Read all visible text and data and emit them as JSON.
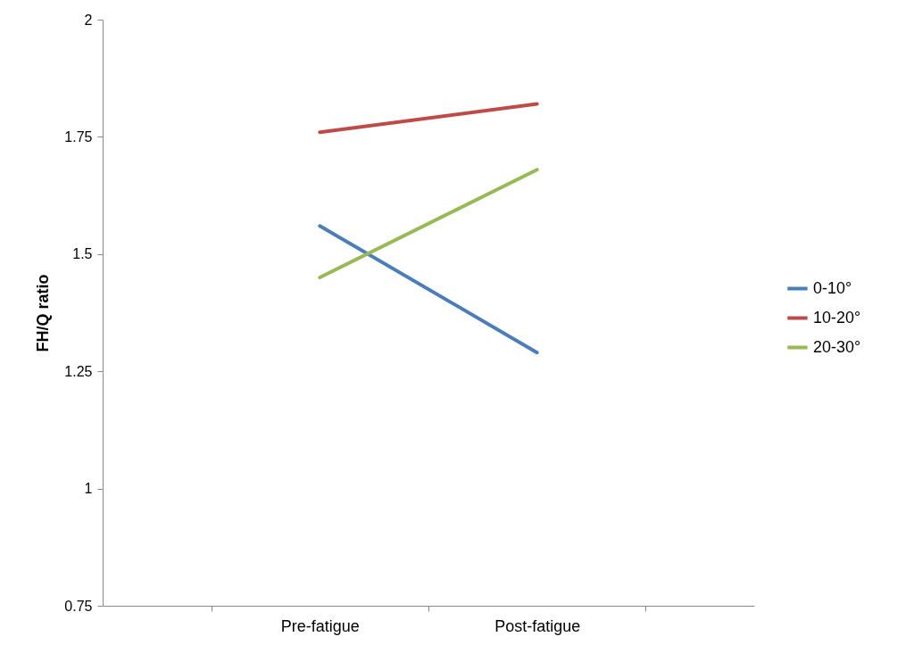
{
  "chart_data": {
    "type": "line",
    "ylabel": "FH/Q ratio",
    "categories": [
      "Pre-fatigue",
      "Post-fatigue"
    ],
    "ylim": [
      0.75,
      2
    ],
    "yticks": [
      0.75,
      1,
      1.25,
      1.5,
      1.75,
      2
    ],
    "grid": false,
    "legend": "right",
    "marker": "none",
    "line_style": "solid",
    "series": [
      {
        "name": "0-10°",
        "color": "#4a7ebb",
        "values": [
          1.56,
          1.29
        ]
      },
      {
        "name": "10-20°",
        "color": "#be4b48",
        "values": [
          1.76,
          1.82
        ]
      },
      {
        "name": "20-30°",
        "color": "#98b954",
        "values": [
          1.45,
          1.68
        ]
      }
    ]
  }
}
